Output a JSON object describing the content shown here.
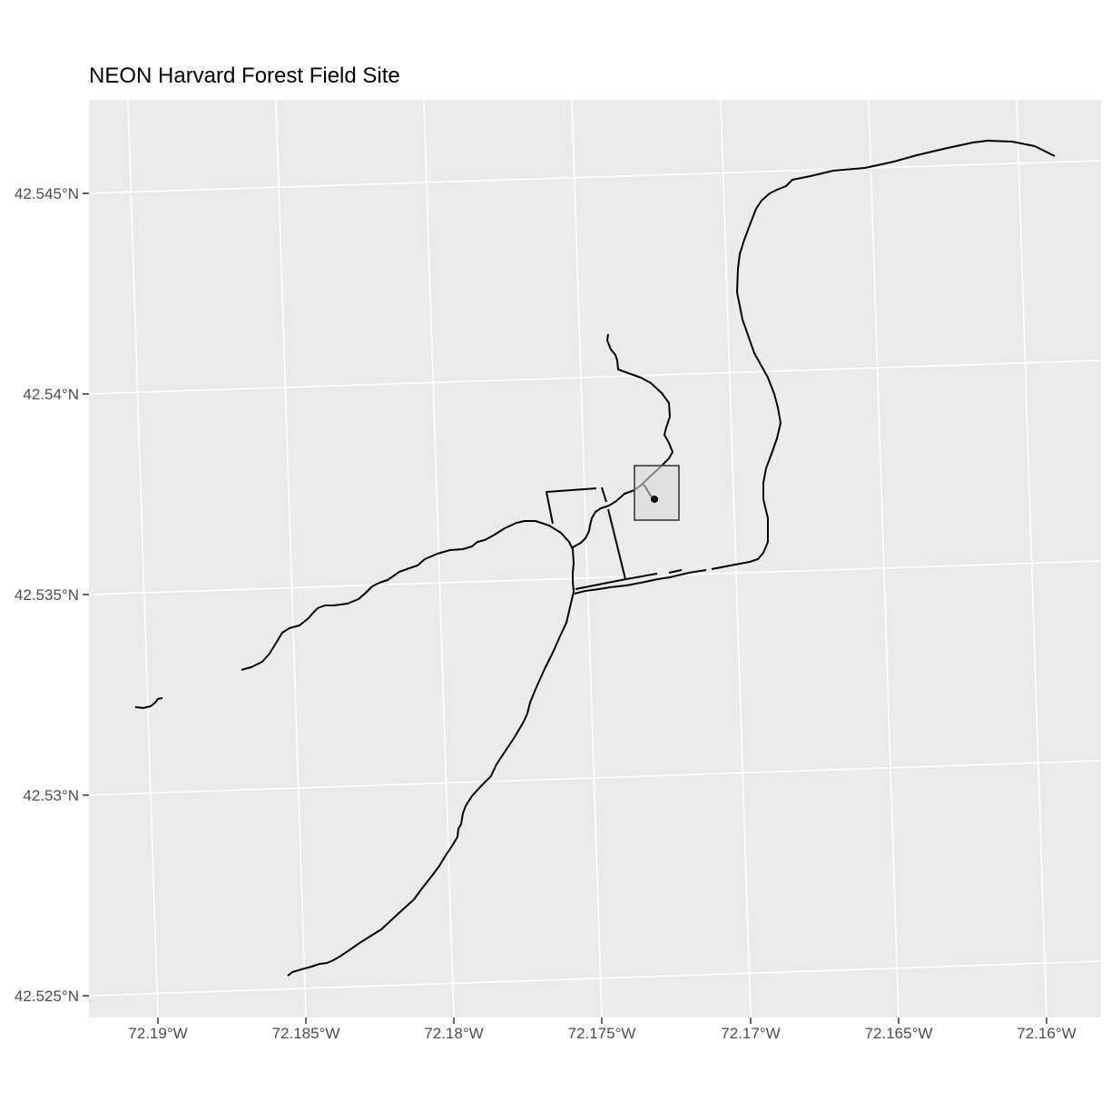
{
  "title": "NEON Harvard Forest Field Site",
  "colors": {
    "panel": "#ebebeb",
    "gridline": "#ffffff",
    "feature": "#000000",
    "plot_fill": "#d9d9d9",
    "plot_stroke": "#4d4d4d",
    "tick_text": "#4d4d4d"
  },
  "axes": {
    "x_ticks": [
      "72.19°W",
      "72.185°W",
      "72.18°W",
      "72.175°W",
      "72.17°W",
      "72.165°W",
      "72.16°W"
    ],
    "y_ticks": [
      "42.545°N",
      "42.54°N",
      "42.535°N",
      "42.53°N",
      "42.525°N"
    ]
  },
  "layers": [
    "roads",
    "plot-boundary",
    "tower-location"
  ]
}
